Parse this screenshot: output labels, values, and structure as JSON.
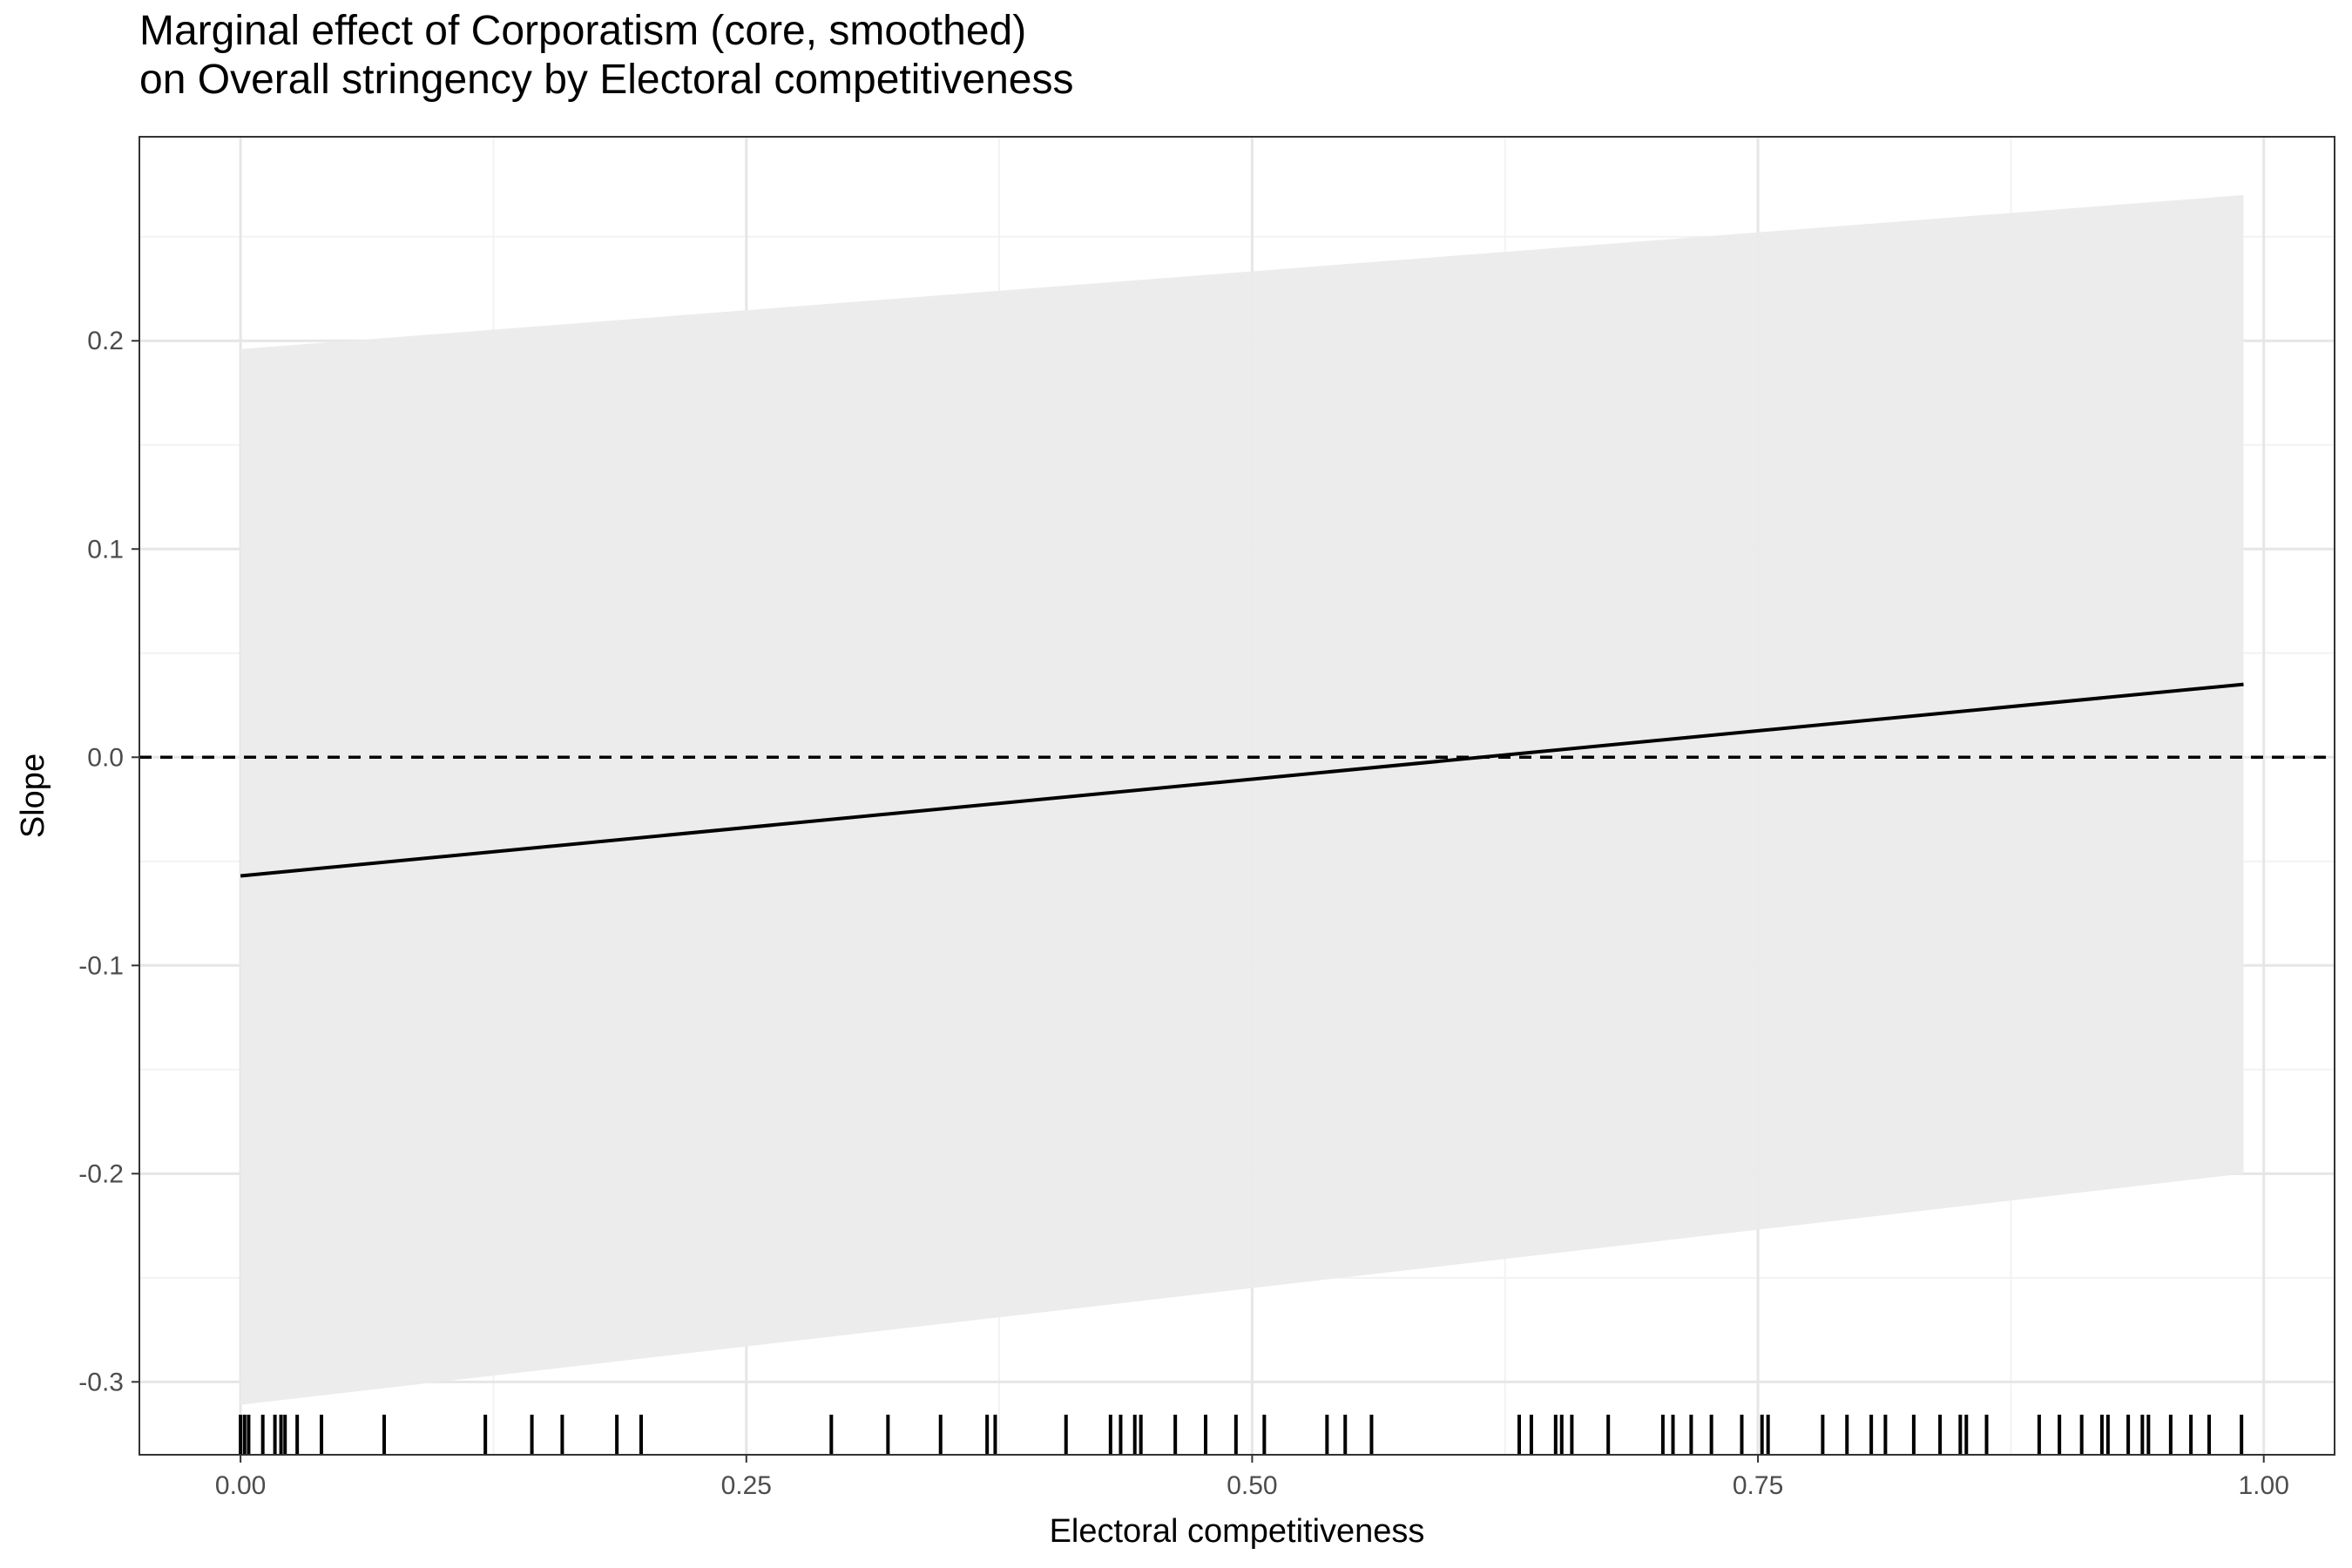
{
  "chart_data": {
    "type": "line",
    "title_line1": "Marginal effect of Corporatism (core, smoothed)",
    "title_line2": "on Overall stringency by Electoral competitiveness",
    "xlabel": "Electoral competitiveness",
    "ylabel": "Slope",
    "xlim": [
      -0.05,
      1.035
    ],
    "ylim": [
      -0.335,
      0.298
    ],
    "x_ticks": [
      0.0,
      0.25,
      0.5,
      0.75,
      1.0
    ],
    "x_tick_labels": [
      "0.00",
      "0.25",
      "0.50",
      "0.75",
      "1.00"
    ],
    "y_ticks": [
      -0.3,
      -0.2,
      -0.1,
      0.0,
      0.1,
      0.2
    ],
    "y_tick_labels": [
      "-0.3",
      "-0.2",
      "-0.1",
      "0.0",
      "0.1",
      "0.2"
    ],
    "grid": true,
    "reference_line": {
      "y": 0.0,
      "style": "dashed"
    },
    "series": [
      {
        "x": [
          0.0,
          0.99
        ],
        "y": [
          -0.057,
          0.035
        ],
        "ci_lower": [
          -0.311,
          -0.2
        ],
        "ci_upper": [
          0.196,
          0.27
        ]
      }
    ],
    "rug": [
      0.0,
      0.002,
      0.004,
      0.011,
      0.017,
      0.02,
      0.022,
      0.028,
      0.04,
      0.071,
      0.121,
      0.144,
      0.159,
      0.186,
      0.198,
      0.292,
      0.32,
      0.346,
      0.369,
      0.373,
      0.408,
      0.43,
      0.435,
      0.442,
      0.445,
      0.462,
      0.477,
      0.492,
      0.506,
      0.537,
      0.546,
      0.559,
      0.632,
      0.638,
      0.65,
      0.653,
      0.658,
      0.676,
      0.703,
      0.708,
      0.717,
      0.727,
      0.742,
      0.752,
      0.755,
      0.782,
      0.794,
      0.806,
      0.813,
      0.827,
      0.84,
      0.85,
      0.853,
      0.863,
      0.889,
      0.899,
      0.91,
      0.92,
      0.923,
      0.933,
      0.94,
      0.943,
      0.954,
      0.964,
      0.973,
      0.989
    ],
    "colors": {
      "ribbon": "#ebebeb",
      "line": "#000000",
      "grid_major": "#e6e6e6",
      "grid_minor": "#f2f2f2",
      "panel_border": "#333333"
    }
  }
}
